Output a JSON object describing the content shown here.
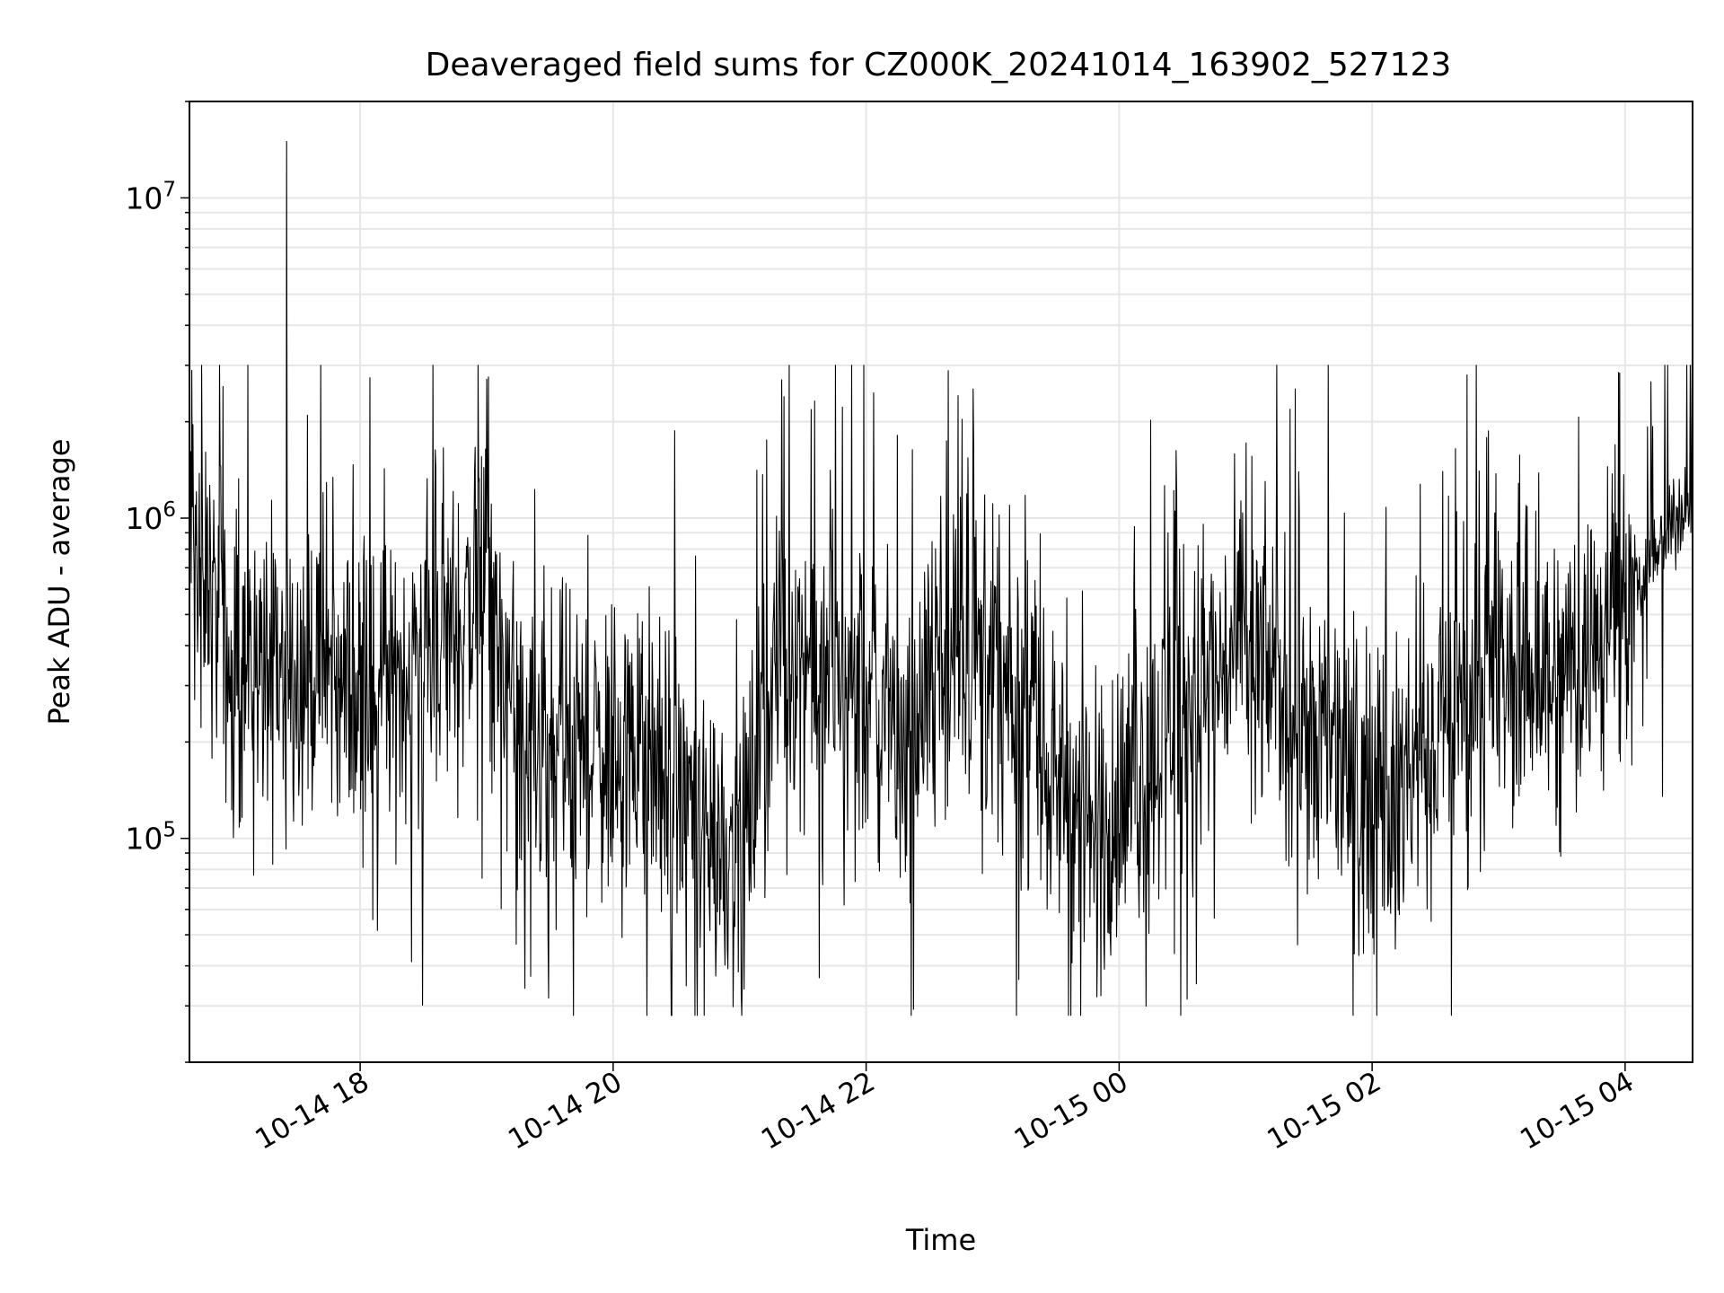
{
  "chart_data": {
    "type": "line",
    "title": "Deaveraged field sums for CZ000K_20241014_163902_527123",
    "xlabel": "Time",
    "ylabel": "Peak ADU - average",
    "x_range": [
      "2024-10-14T16:39:02",
      "2024-10-15T04:32:00"
    ],
    "x_ticks": [
      "10-14 18",
      "10-14 20",
      "10-14 22",
      "10-15 00",
      "10-15 02",
      "10-15 04"
    ],
    "x_tick_times": [
      "2024-10-14T18:00:00",
      "2024-10-14T20:00:00",
      "2024-10-14T22:00:00",
      "2024-10-15T00:00:00",
      "2024-10-15T02:00:00",
      "2024-10-15T04:00:00"
    ],
    "y_scale": "log",
    "ylim": [
      20000,
      20000000
    ],
    "y_ticks": [
      {
        "value": 100000,
        "base": "10",
        "exp": "5"
      },
      {
        "value": 1000000,
        "base": "10",
        "exp": "6"
      },
      {
        "value": 10000000,
        "base": "10",
        "exp": "7"
      }
    ],
    "grid": true,
    "legend": "none",
    "line_color": "#000000",
    "grid_color": "#e6e6e6",
    "notable_points": [
      {
        "time": "2024-10-14T16:39:02",
        "value": 1100000
      },
      {
        "time": "2024-10-14T17:25:00",
        "value": 15000000
      },
      {
        "time": "2024-10-14T21:53:00",
        "value": 3000000
      },
      {
        "time": "2024-10-14T23:36:00",
        "value": 28000
      },
      {
        "time": "2024-10-15T02:45:00",
        "value": 2800000
      },
      {
        "time": "2024-10-15T03:57:00",
        "value": 2850000
      },
      {
        "time": "2024-10-15T04:32:00",
        "value": 1200000
      }
    ],
    "trend": [
      {
        "time": "2024-10-14T16:39:02",
        "value": 1100000
      },
      {
        "time": "2024-10-14T17:00:00",
        "value": 300000
      },
      {
        "time": "2024-10-14T17:30:00",
        "value": 350000
      },
      {
        "time": "2024-10-14T18:00:00",
        "value": 280000
      },
      {
        "time": "2024-10-14T18:30:00",
        "value": 350000
      },
      {
        "time": "2024-10-14T19:00:00",
        "value": 600000
      },
      {
        "time": "2024-10-14T19:20:00",
        "value": 150000
      },
      {
        "time": "2024-10-14T20:00:00",
        "value": 200000
      },
      {
        "time": "2024-10-14T20:40:00",
        "value": 120000
      },
      {
        "time": "2024-10-14T21:00:00",
        "value": 90000
      },
      {
        "time": "2024-10-14T21:20:00",
        "value": 400000
      },
      {
        "time": "2024-10-14T21:45:00",
        "value": 350000
      },
      {
        "time": "2024-10-14T22:20:00",
        "value": 200000
      },
      {
        "time": "2024-10-14T22:45:00",
        "value": 450000
      },
      {
        "time": "2024-10-14T23:20:00",
        "value": 200000
      },
      {
        "time": "2024-10-14T23:50:00",
        "value": 100000
      },
      {
        "time": "2024-10-15T00:30:00",
        "value": 250000
      },
      {
        "time": "2024-10-15T01:00:00",
        "value": 400000
      },
      {
        "time": "2024-10-15T01:40:00",
        "value": 200000
      },
      {
        "time": "2024-10-15T02:00:00",
        "value": 120000
      },
      {
        "time": "2024-10-15T02:30:00",
        "value": 200000
      },
      {
        "time": "2024-10-15T03:00:00",
        "value": 300000
      },
      {
        "time": "2024-10-15T03:30:00",
        "value": 350000
      },
      {
        "time": "2024-10-15T04:00:00",
        "value": 500000
      },
      {
        "time": "2024-10-15T04:32:00",
        "value": 1200000
      }
    ]
  }
}
